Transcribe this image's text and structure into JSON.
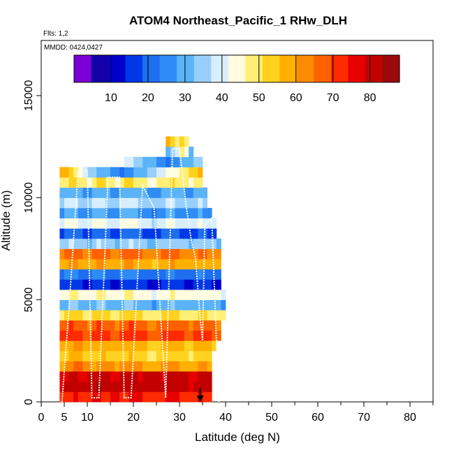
{
  "chart_data": {
    "type": "heatmap",
    "title": "ATOM4 Northeast_Pacific_1 RHw_DLH",
    "subtitle": "Flts: 1,2",
    "annotation": "MMDD: 0424,0427",
    "xlabel": "Latitude (deg N)",
    "ylabel": "Altitude (m)",
    "xlim": [
      0,
      85
    ],
    "ylim": [
      0,
      17700
    ],
    "x_ticks": [
      0,
      5,
      10,
      20,
      30,
      40,
      50,
      60,
      70,
      80
    ],
    "y_ticks": [
      0,
      5000,
      10000,
      15000
    ],
    "colorbar": {
      "range": [
        0,
        88
      ],
      "ticks": [
        10,
        20,
        30,
        40,
        50,
        60,
        70,
        80
      ],
      "colors": [
        "#7b00d6",
        "#1400a8",
        "#0000cd",
        "#0038e8",
        "#1e6ef0",
        "#2f8cf5",
        "#5bb3f8",
        "#98d0fb",
        "#d8eefd",
        "#fffce0",
        "#ffef75",
        "#ffd21f",
        "#ffb000",
        "#ff8c00",
        "#ff6000",
        "#ff2a00",
        "#e60000",
        "#c20000",
        "#9a0a0a"
      ]
    },
    "grid": false,
    "legend": "top",
    "latitude_bins": [
      4,
      5,
      6,
      7,
      8,
      9,
      10,
      11,
      12,
      13,
      14,
      15,
      16,
      17,
      18,
      19,
      20,
      21,
      22,
      23,
      24,
      25,
      26,
      27,
      28,
      29,
      30,
      31,
      32,
      33,
      34,
      35,
      36,
      37,
      38,
      39,
      40
    ],
    "altitude_bins": [
      0,
      500,
      1000,
      1500,
      2000,
      2500,
      3000,
      3500,
      4000,
      4500,
      5000,
      5500,
      6000,
      6500,
      7000,
      7500,
      8000,
      8500,
      9000,
      9500,
      10000,
      10500,
      11000,
      11500,
      12000,
      12500
    ],
    "rhw_grid": [
      [
        72,
        72,
        74,
        75,
        73,
        72,
        74,
        75,
        76,
        74,
        72,
        75,
        75,
        74,
        73,
        75,
        76,
        75,
        74,
        73,
        72,
        73,
        74,
        75,
        76,
        75,
        74,
        73,
        72,
        74,
        75,
        74,
        73,
        null,
        null,
        null,
        null
      ],
      [
        78,
        80,
        82,
        81,
        83,
        80,
        79,
        82,
        84,
        83,
        81,
        80,
        79,
        82,
        83,
        82,
        80,
        81,
        82,
        83,
        82,
        80,
        79,
        81,
        82,
        83,
        81,
        80,
        78,
        79,
        81,
        82,
        80,
        null,
        null,
        null,
        null
      ],
      [
        76,
        78,
        80,
        79,
        78,
        77,
        79,
        80,
        82,
        81,
        80,
        78,
        77,
        79,
        80,
        81,
        79,
        78,
        80,
        81,
        80,
        79,
        78,
        80,
        81,
        82,
        80,
        79,
        77,
        78,
        80,
        81,
        79,
        null,
        null,
        null,
        null
      ],
      [
        60,
        62,
        64,
        66,
        65,
        63,
        61,
        60,
        62,
        64,
        63,
        61,
        60,
        62,
        63,
        64,
        62,
        61,
        60,
        58,
        57,
        59,
        61,
        62,
        63,
        61,
        60,
        59,
        58,
        60,
        62,
        61,
        60,
        null,
        null,
        null,
        null
      ],
      [
        52,
        54,
        56,
        58,
        57,
        55,
        53,
        52,
        54,
        56,
        55,
        53,
        52,
        54,
        55,
        56,
        54,
        53,
        52,
        50,
        49,
        51,
        53,
        54,
        55,
        53,
        52,
        51,
        50,
        52,
        54,
        53,
        52,
        null,
        null,
        null,
        null
      ],
      [
        56,
        58,
        60,
        62,
        61,
        59,
        57,
        56,
        58,
        60,
        59,
        57,
        56,
        58,
        59,
        60,
        58,
        57,
        56,
        54,
        53,
        55,
        57,
        58,
        59,
        57,
        56,
        55,
        54,
        56,
        58,
        57,
        56,
        55,
        null,
        null,
        null
      ],
      [
        70,
        72,
        74,
        73,
        71,
        69,
        68,
        72,
        74,
        73,
        71,
        69,
        68,
        72,
        73,
        74,
        72,
        71,
        70,
        68,
        67,
        69,
        71,
        72,
        73,
        71,
        70,
        69,
        68,
        70,
        72,
        71,
        70,
        69,
        68,
        null,
        null
      ],
      [
        66,
        68,
        70,
        69,
        67,
        65,
        64,
        68,
        70,
        69,
        67,
        65,
        64,
        68,
        69,
        70,
        68,
        67,
        66,
        64,
        63,
        65,
        67,
        68,
        69,
        67,
        66,
        65,
        64,
        66,
        68,
        67,
        66,
        65,
        64,
        null,
        null
      ],
      [
        50,
        52,
        54,
        53,
        51,
        49,
        48,
        52,
        54,
        53,
        51,
        49,
        48,
        52,
        53,
        54,
        52,
        51,
        50,
        48,
        47,
        49,
        51,
        52,
        53,
        51,
        50,
        49,
        48,
        50,
        52,
        51,
        50,
        49,
        48,
        47,
        null
      ],
      [
        30,
        32,
        34,
        33,
        31,
        29,
        28,
        32,
        34,
        33,
        31,
        29,
        28,
        32,
        33,
        34,
        32,
        31,
        30,
        28,
        27,
        29,
        31,
        32,
        33,
        31,
        30,
        29,
        28,
        30,
        32,
        31,
        30,
        29,
        28,
        27,
        null
      ],
      [
        44,
        46,
        48,
        47,
        45,
        43,
        42,
        46,
        48,
        47,
        45,
        43,
        42,
        46,
        47,
        48,
        46,
        45,
        44,
        42,
        41,
        43,
        45,
        46,
        47,
        45,
        44,
        43,
        42,
        44,
        46,
        45,
        44,
        43,
        42,
        41,
        null
      ],
      [
        14,
        16,
        18,
        17,
        15,
        13,
        12,
        16,
        18,
        17,
        15,
        13,
        12,
        16,
        17,
        18,
        16,
        15,
        14,
        12,
        11,
        13,
        15,
        16,
        17,
        15,
        14,
        13,
        12,
        14,
        16,
        15,
        14,
        13,
        12,
        null,
        null
      ],
      [
        22,
        24,
        26,
        25,
        23,
        21,
        20,
        24,
        26,
        25,
        23,
        21,
        20,
        24,
        25,
        26,
        24,
        23,
        22,
        20,
        19,
        21,
        23,
        24,
        25,
        23,
        22,
        21,
        20,
        22,
        24,
        23,
        22,
        21,
        20,
        null,
        null
      ],
      [
        58,
        60,
        62,
        61,
        59,
        57,
        56,
        60,
        62,
        61,
        59,
        57,
        56,
        60,
        61,
        62,
        60,
        59,
        58,
        56,
        55,
        57,
        59,
        60,
        61,
        59,
        58,
        57,
        56,
        58,
        60,
        59,
        58,
        57,
        56,
        null,
        null
      ],
      [
        64,
        66,
        68,
        67,
        65,
        63,
        62,
        66,
        68,
        67,
        65,
        63,
        62,
        66,
        67,
        68,
        66,
        65,
        64,
        62,
        61,
        63,
        65,
        66,
        67,
        65,
        64,
        63,
        62,
        64,
        66,
        65,
        64,
        63,
        62,
        null,
        null
      ],
      [
        34,
        36,
        38,
        37,
        35,
        33,
        32,
        36,
        38,
        37,
        35,
        33,
        32,
        36,
        37,
        38,
        36,
        35,
        34,
        32,
        31,
        33,
        35,
        36,
        37,
        35,
        34,
        33,
        32,
        34,
        36,
        35,
        34,
        33,
        32,
        null,
        null
      ],
      [
        18,
        20,
        22,
        21,
        19,
        17,
        16,
        20,
        22,
        21,
        19,
        17,
        16,
        20,
        21,
        22,
        20,
        19,
        18,
        16,
        15,
        17,
        19,
        20,
        21,
        19,
        18,
        17,
        16,
        18,
        20,
        19,
        18,
        17,
        null,
        null,
        null
      ],
      [
        40,
        42,
        44,
        43,
        41,
        39,
        38,
        42,
        44,
        43,
        41,
        39,
        38,
        42,
        43,
        44,
        42,
        41,
        40,
        38,
        37,
        39,
        41,
        42,
        43,
        41,
        40,
        39,
        38,
        40,
        42,
        41,
        40,
        39,
        null,
        null,
        null
      ],
      [
        26,
        28,
        30,
        29,
        27,
        25,
        24,
        28,
        30,
        29,
        27,
        25,
        24,
        28,
        29,
        30,
        28,
        27,
        26,
        24,
        23,
        25,
        27,
        28,
        29,
        27,
        26,
        25,
        24,
        26,
        28,
        27,
        26,
        null,
        null,
        null,
        null
      ],
      [
        36,
        38,
        40,
        39,
        37,
        35,
        34,
        38,
        40,
        39,
        37,
        35,
        34,
        38,
        39,
        40,
        38,
        37,
        36,
        34,
        33,
        35,
        37,
        38,
        39,
        37,
        36,
        35,
        34,
        36,
        38,
        37,
        null,
        null,
        null,
        null,
        null
      ],
      [
        28,
        30,
        32,
        31,
        29,
        27,
        26,
        30,
        32,
        31,
        29,
        27,
        26,
        30,
        31,
        32,
        30,
        29,
        28,
        26,
        25,
        27,
        29,
        30,
        31,
        29,
        28,
        27,
        26,
        28,
        30,
        29,
        null,
        null,
        null,
        null,
        null
      ],
      [
        48,
        50,
        52,
        51,
        49,
        47,
        46,
        50,
        52,
        51,
        49,
        47,
        46,
        50,
        51,
        52,
        50,
        49,
        48,
        46,
        45,
        47,
        49,
        50,
        51,
        49,
        48,
        47,
        46,
        48,
        50,
        null,
        null,
        null,
        null,
        null,
        null
      ],
      [
        60,
        56,
        52,
        48,
        44,
        40,
        36,
        34,
        32,
        30,
        28,
        26,
        24,
        22,
        24,
        26,
        28,
        30,
        32,
        34,
        36,
        38,
        40,
        42,
        44,
        46,
        48,
        50,
        52,
        54,
        56,
        null,
        null,
        null,
        null,
        null,
        null
      ],
      [
        null,
        null,
        null,
        null,
        null,
        null,
        null,
        null,
        null,
        null,
        null,
        null,
        null,
        null,
        40,
        38,
        36,
        34,
        32,
        30,
        28,
        26,
        24,
        22,
        24,
        26,
        28,
        30,
        32,
        34,
        36,
        null,
        null,
        null,
        null,
        null,
        null
      ],
      [
        null,
        null,
        null,
        null,
        null,
        null,
        null,
        null,
        null,
        null,
        null,
        null,
        null,
        null,
        null,
        null,
        null,
        null,
        null,
        null,
        null,
        null,
        null,
        30,
        34,
        38,
        50,
        45,
        30,
        null,
        null,
        null,
        null,
        null,
        null,
        null,
        null
      ],
      [
        null,
        null,
        null,
        null,
        null,
        null,
        null,
        null,
        null,
        null,
        null,
        null,
        null,
        null,
        null,
        null,
        null,
        null,
        null,
        null,
        null,
        null,
        null,
        60,
        55,
        50,
        52,
        48,
        null,
        null,
        null,
        null,
        null,
        null,
        null,
        null,
        null
      ]
    ],
    "flight_track": {
      "latitude": [
        4.5,
        6,
        8,
        10,
        11,
        12.5,
        14.5,
        17,
        18,
        19.5,
        22,
        24.5,
        27,
        28.5,
        30,
        31.5,
        32.5,
        33.5,
        34.5,
        35,
        35.5,
        37,
        38.5
      ],
      "altitude": [
        0,
        4500,
        11300,
        11300,
        200,
        200,
        11000,
        11000,
        200,
        200,
        10600,
        9500,
        200,
        12400,
        12400,
        9500,
        8000,
        7000,
        4000,
        3000,
        8700,
        9000,
        0
      ]
    },
    "arrow_marker_latitude": 34.5
  }
}
